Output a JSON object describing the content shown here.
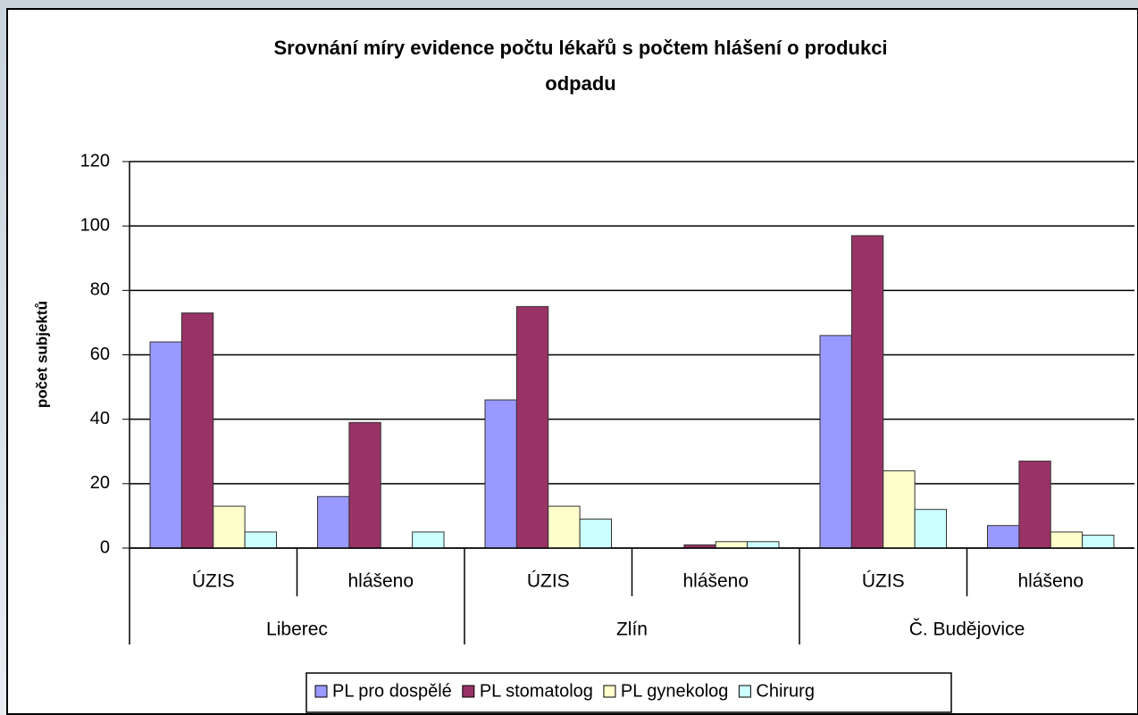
{
  "chart_data": {
    "type": "bar",
    "title": "Srovnání míry evidence počtu lékařů s počtem hlášení o produkci",
    "title_line2": "odpadu",
    "ylabel": "počet subjektů",
    "categories": [
      "ÚZIS",
      "hlášeno",
      "ÚZIS",
      "hlášeno",
      "ÚZIS",
      "hlášeno"
    ],
    "groups": [
      "Liberec",
      "Zlín",
      "Č. Budějovice"
    ],
    "series": [
      {
        "name": "PL pro dospělé",
        "color": "#9999ff",
        "values": [
          64,
          16,
          46,
          0,
          66,
          7
        ]
      },
      {
        "name": "PL stomatolog",
        "color": "#993366",
        "values": [
          73,
          39,
          75,
          1,
          97,
          27
        ]
      },
      {
        "name": "PL gynekolog",
        "color": "#ffffcc",
        "values": [
          13,
          0,
          13,
          2,
          24,
          5
        ]
      },
      {
        "name": "Chirurg",
        "color": "#ccffff",
        "values": [
          5,
          5,
          9,
          2,
          12,
          4
        ]
      }
    ],
    "ylim": [
      0,
      120
    ],
    "yticks": [
      0,
      20,
      40,
      60,
      80,
      100,
      120
    ],
    "grid": true,
    "legend": "bottom"
  }
}
